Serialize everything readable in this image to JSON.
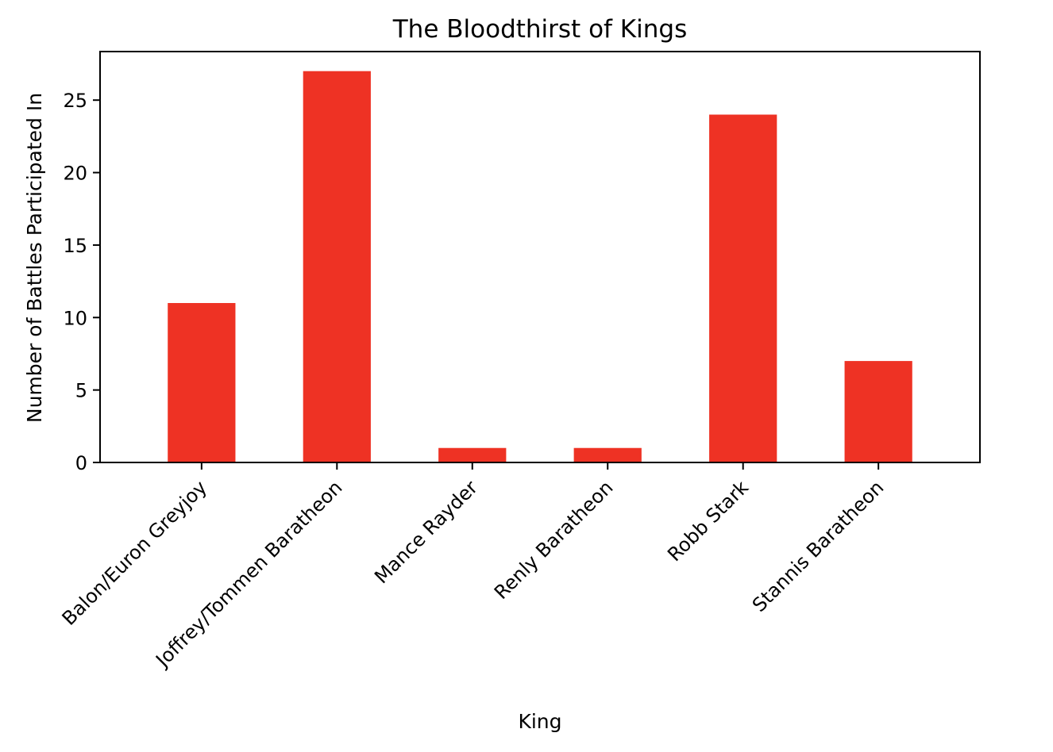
{
  "chart_data": {
    "type": "bar",
    "title": "The Bloodthirst of Kings",
    "xlabel": "King",
    "ylabel": "Number of Battles Participated In",
    "categories": [
      "Balon/Euron Greyjoy",
      "Joffrey/Tommen Baratheon",
      "Mance Rayder",
      "Renly Baratheon",
      "Robb Stark",
      "Stannis Baratheon"
    ],
    "values": [
      11,
      27,
      1,
      1,
      24,
      7
    ],
    "ylim": [
      0,
      28.35
    ],
    "yticks": [
      "0",
      "5",
      "10",
      "15",
      "20",
      "25"
    ],
    "bar_color": "#ee3224",
    "grid": false,
    "legend": "none"
  }
}
